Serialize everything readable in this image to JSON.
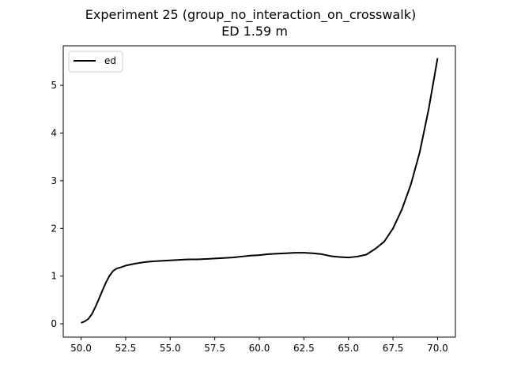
{
  "chart_data": {
    "type": "line",
    "title": "Experiment 25 (group_no_interaction_on_crosswalk)",
    "subtitle": "ED 1.59 m",
    "xlabel": "",
    "ylabel": "",
    "xlim": [
      49.0,
      71.0
    ],
    "ylim": [
      -0.28,
      5.83
    ],
    "x_ticks": [
      50.0,
      52.5,
      55.0,
      57.5,
      60.0,
      62.5,
      65.0,
      67.5,
      70.0
    ],
    "x_tick_labels": [
      "50.0",
      "52.5",
      "55.0",
      "57.5",
      "60.0",
      "62.5",
      "65.0",
      "67.5",
      "70.0"
    ],
    "y_ticks": [
      0,
      1,
      2,
      3,
      4,
      5
    ],
    "y_tick_labels": [
      "0",
      "1",
      "2",
      "3",
      "4",
      "5"
    ],
    "grid": false,
    "legend": {
      "placement": "top-left",
      "entries": [
        "ed"
      ]
    },
    "series": [
      {
        "name": "ed",
        "color": "#000000",
        "x": [
          50.0,
          50.2,
          50.4,
          50.6,
          50.8,
          51.0,
          51.2,
          51.4,
          51.6,
          51.8,
          52.0,
          52.2,
          52.5,
          53.0,
          53.5,
          54.0,
          54.5,
          55.0,
          55.5,
          56.0,
          56.5,
          57.0,
          57.5,
          58.0,
          58.5,
          59.0,
          59.5,
          60.0,
          60.5,
          61.0,
          61.5,
          62.0,
          62.5,
          63.0,
          63.5,
          64.0,
          64.5,
          65.0,
          65.5,
          66.0,
          66.5,
          67.0,
          67.5,
          68.0,
          68.5,
          69.0,
          69.5,
          70.0
        ],
        "values": [
          0.02,
          0.05,
          0.1,
          0.2,
          0.35,
          0.52,
          0.7,
          0.87,
          1.01,
          1.11,
          1.16,
          1.18,
          1.22,
          1.26,
          1.29,
          1.31,
          1.32,
          1.33,
          1.34,
          1.35,
          1.35,
          1.36,
          1.37,
          1.38,
          1.39,
          1.41,
          1.43,
          1.44,
          1.46,
          1.47,
          1.48,
          1.49,
          1.49,
          1.48,
          1.46,
          1.42,
          1.4,
          1.39,
          1.41,
          1.45,
          1.57,
          1.72,
          2.0,
          2.4,
          2.92,
          3.6,
          4.5,
          5.57
        ]
      }
    ]
  }
}
